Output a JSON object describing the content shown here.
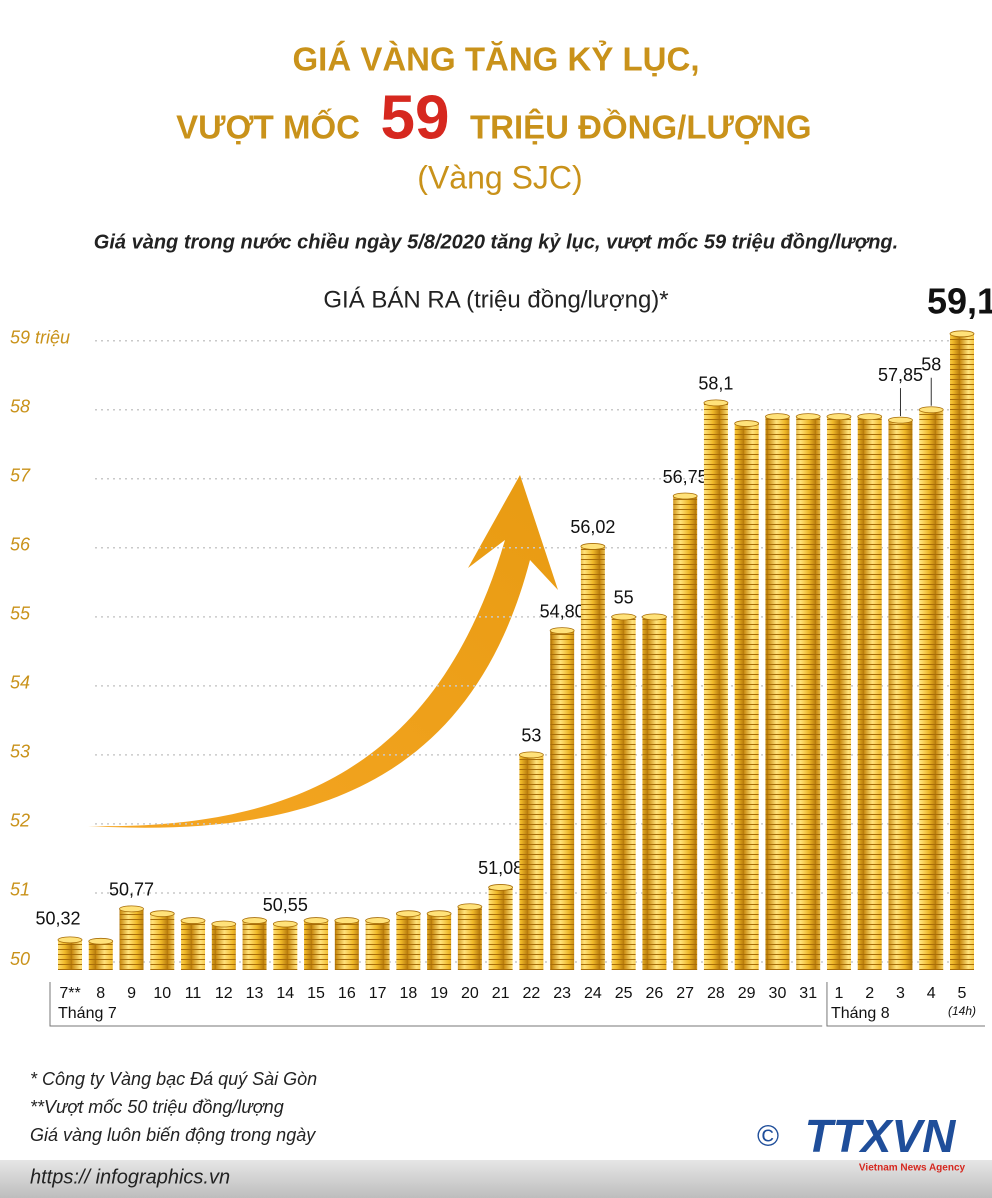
{
  "header": {
    "title_line1": "GIÁ VÀNG TĂNG KỶ LỤC,",
    "title_line2_left": "VƯỢT MỐC",
    "title_highlight": "59",
    "title_line2_right": "TRIỆU ĐỒNG/LƯỢNG",
    "title_line3": "(Vàng SJC)",
    "subtitle": "Giá vàng trong nước chiều ngày 5/8/2020 tăng kỷ lục, vượt mốc 59 triệu đồng/lượng."
  },
  "chart_data": {
    "type": "bar",
    "title": "GIÁ BÁN RA (triệu đồng/lượng)*",
    "categories": [
      "7**",
      "8",
      "9",
      "10",
      "11",
      "12",
      "13",
      "14",
      "15",
      "16",
      "17",
      "18",
      "19",
      "20",
      "21",
      "22",
      "23",
      "24",
      "25",
      "26",
      "27",
      "28",
      "29",
      "30",
      "31",
      "1",
      "2",
      "3",
      "4",
      "5"
    ],
    "values": [
      50.32,
      50.3,
      50.77,
      50.7,
      50.6,
      50.55,
      50.6,
      50.55,
      50.6,
      50.6,
      50.6,
      50.7,
      50.7,
      50.8,
      51.08,
      53,
      54.8,
      56.02,
      55,
      55,
      56.75,
      58.1,
      57.8,
      57.9,
      57.9,
      57.9,
      57.9,
      57.85,
      58,
      59.1
    ],
    "value_labels": [
      "50,32",
      null,
      "50,77",
      null,
      null,
      null,
      null,
      "50,55",
      null,
      null,
      null,
      null,
      null,
      null,
      "51,08",
      "53",
      "54,80",
      "56,02",
      "55",
      null,
      "56,75",
      "58,1",
      null,
      null,
      null,
      null,
      null,
      "57,85",
      "58",
      "59,1"
    ],
    "x_groups": [
      "Tháng 7",
      "Tháng 8"
    ],
    "x_note": "(14h)",
    "ylim": [
      50,
      59.3
    ],
    "yticks": [
      50,
      51,
      52,
      53,
      54,
      55,
      56,
      57,
      58,
      {
        "value": 59,
        "label": "59 triệu"
      }
    ],
    "grid": true,
    "color": "#e8b52a"
  },
  "footnotes": [
    "* Công ty Vàng bạc Đá quý Sài Gòn",
    "**Vượt mốc 50 triệu đồng/lượng",
    "Giá vàng luôn biến động trong ngày"
  ],
  "footer": {
    "url": "https:// infographics.vn",
    "logo": "TTXVN",
    "logo_sub": "Vietnam News Agency",
    "copyright": "©"
  }
}
